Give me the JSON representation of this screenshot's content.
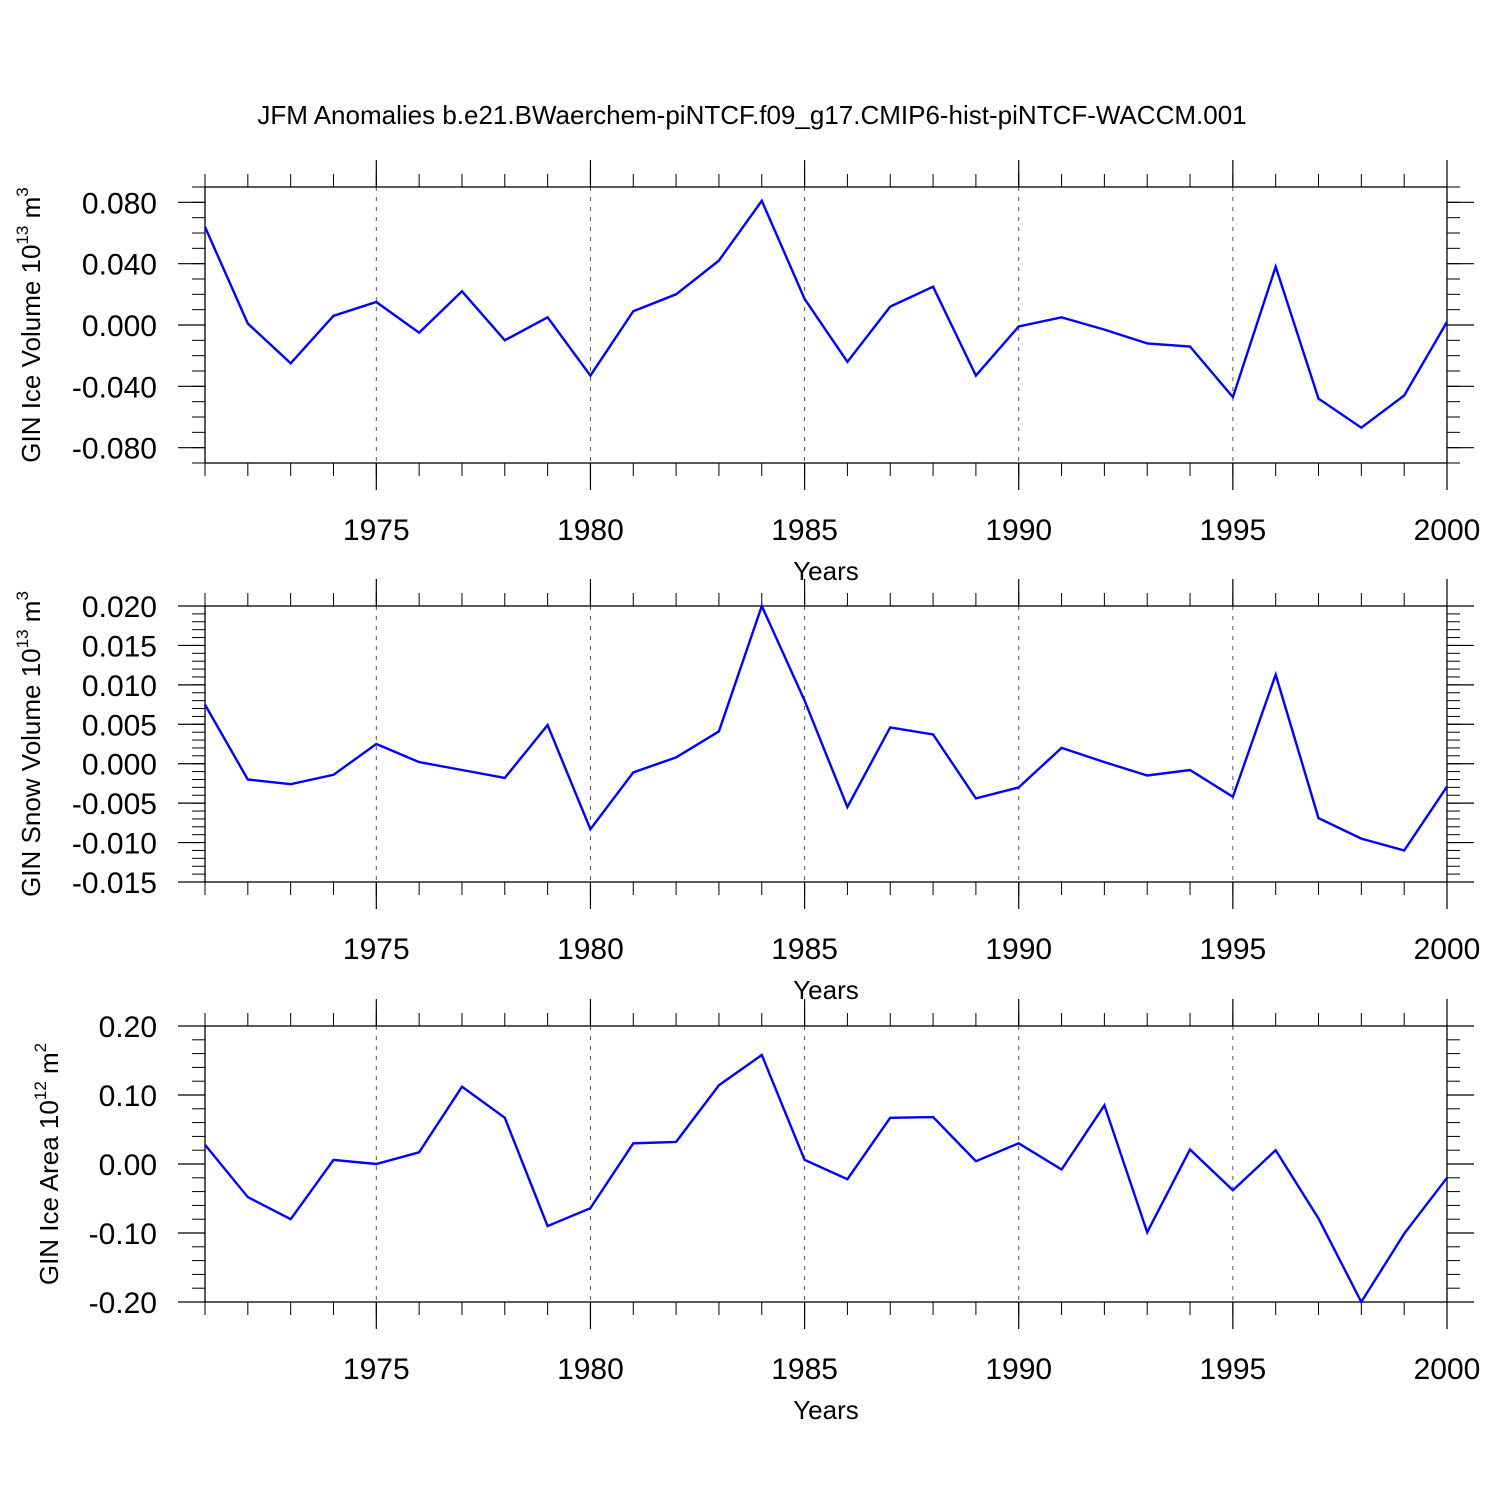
{
  "title": "JFM Anomalies b.e21.BWaerchem-piNTCF.f09_g17.CMIP6-hist-piNTCF-WACCM.001",
  "line_color": "#0000ff",
  "chart_data": [
    {
      "type": "line",
      "ylabel": "GIN Ice Volume",
      "ylabel_power": "10",
      "ylabel_exp": "13",
      "ylabel_unit": "m",
      "ylabel_unit_exp": "3",
      "xlabel": "Years",
      "xlim": [
        1971,
        2000
      ],
      "ylim": [
        -0.09,
        0.09
      ],
      "x_ticks": [
        1975,
        1980,
        1985,
        1990,
        1995,
        2000
      ],
      "x_tick_labels": [
        "1975",
        "1980",
        "1985",
        "1990",
        "1995",
        "2000"
      ],
      "y_ticks": [
        0.08,
        0.04,
        0.0,
        -0.04,
        -0.08
      ],
      "y_tick_labels": [
        "0.080",
        "0.040",
        "0.000",
        "-0.040",
        "-0.080"
      ],
      "y_minor_step": 0.01,
      "x": [
        1971,
        1972,
        1973,
        1974,
        1975,
        1976,
        1977,
        1978,
        1979,
        1980,
        1981,
        1982,
        1983,
        1984,
        1985,
        1986,
        1987,
        1988,
        1989,
        1990,
        1991,
        1992,
        1993,
        1994,
        1995,
        1996,
        1997,
        1998,
        1999,
        2000
      ],
      "values": [
        0.064,
        0.001,
        -0.025,
        0.006,
        0.015,
        -0.005,
        0.022,
        -0.01,
        0.005,
        -0.033,
        0.009,
        0.02,
        0.042,
        0.081,
        0.017,
        -0.024,
        0.012,
        0.025,
        -0.033,
        -0.001,
        0.005,
        -0.003,
        -0.012,
        -0.014,
        -0.047,
        0.038,
        -0.048,
        -0.067,
        -0.046,
        0.002
      ]
    },
    {
      "type": "line",
      "ylabel": "GIN Snow Volume",
      "ylabel_power": "10",
      "ylabel_exp": "13",
      "ylabel_unit": "m",
      "ylabel_unit_exp": "3",
      "xlabel": "Years",
      "xlim": [
        1971,
        2000
      ],
      "ylim": [
        -0.015,
        0.02
      ],
      "x_ticks": [
        1975,
        1980,
        1985,
        1990,
        1995,
        2000
      ],
      "x_tick_labels": [
        "1975",
        "1980",
        "1985",
        "1990",
        "1995",
        "2000"
      ],
      "y_ticks": [
        0.02,
        0.015,
        0.01,
        0.005,
        0.0,
        -0.005,
        -0.01,
        -0.015
      ],
      "y_tick_labels": [
        "0.020",
        "0.015",
        "0.010",
        "0.005",
        "0.000",
        "-0.005",
        "-0.010",
        "-0.015"
      ],
      "y_minor_step": 0.001,
      "x": [
        1971,
        1972,
        1973,
        1974,
        1975,
        1976,
        1977,
        1978,
        1979,
        1980,
        1981,
        1982,
        1983,
        1984,
        1985,
        1986,
        1987,
        1988,
        1989,
        1990,
        1991,
        1992,
        1993,
        1994,
        1995,
        1996,
        1997,
        1998,
        1999,
        2000
      ],
      "values": [
        0.0075,
        -0.002,
        -0.0026,
        -0.0014,
        0.0025,
        0.0002,
        -0.0008,
        -0.0018,
        0.0049,
        -0.0083,
        -0.0011,
        0.0008,
        0.0041,
        0.02,
        0.008,
        -0.0055,
        0.0046,
        0.0037,
        -0.0044,
        -0.003,
        0.002,
        0.0002,
        -0.0015,
        -0.0008,
        -0.0042,
        0.0113,
        -0.0069,
        -0.0095,
        -0.011,
        -0.0029
      ]
    },
    {
      "type": "line",
      "ylabel": "GIN Ice Area",
      "ylabel_power": "10",
      "ylabel_exp": "12",
      "ylabel_unit": "m",
      "ylabel_unit_exp": "2",
      "xlabel": "Years",
      "xlim": [
        1971,
        2000
      ],
      "ylim": [
        -0.2,
        0.2
      ],
      "x_ticks": [
        1975,
        1980,
        1985,
        1990,
        1995,
        2000
      ],
      "x_tick_labels": [
        "1975",
        "1980",
        "1985",
        "1990",
        "1995",
        "2000"
      ],
      "y_ticks": [
        0.2,
        0.1,
        0.0,
        -0.1,
        -0.2
      ],
      "y_tick_labels": [
        "0.20",
        "0.10",
        "0.00",
        "-0.10",
        "-0.20"
      ],
      "y_minor_step": 0.02,
      "x": [
        1971,
        1972,
        1973,
        1974,
        1975,
        1976,
        1977,
        1978,
        1979,
        1980,
        1981,
        1982,
        1983,
        1984,
        1985,
        1986,
        1987,
        1988,
        1989,
        1990,
        1991,
        1992,
        1993,
        1994,
        1995,
        1996,
        1997,
        1998,
        1999,
        2000
      ],
      "values": [
        0.028,
        -0.048,
        -0.08,
        0.006,
        0.0,
        0.017,
        0.112,
        0.067,
        -0.09,
        -0.064,
        0.03,
        0.032,
        0.114,
        0.158,
        0.006,
        -0.022,
        0.067,
        0.068,
        0.004,
        0.03,
        -0.008,
        0.085,
        -0.099,
        0.021,
        -0.038,
        0.02,
        -0.079,
        -0.2,
        -0.101,
        -0.02
      ]
    }
  ]
}
